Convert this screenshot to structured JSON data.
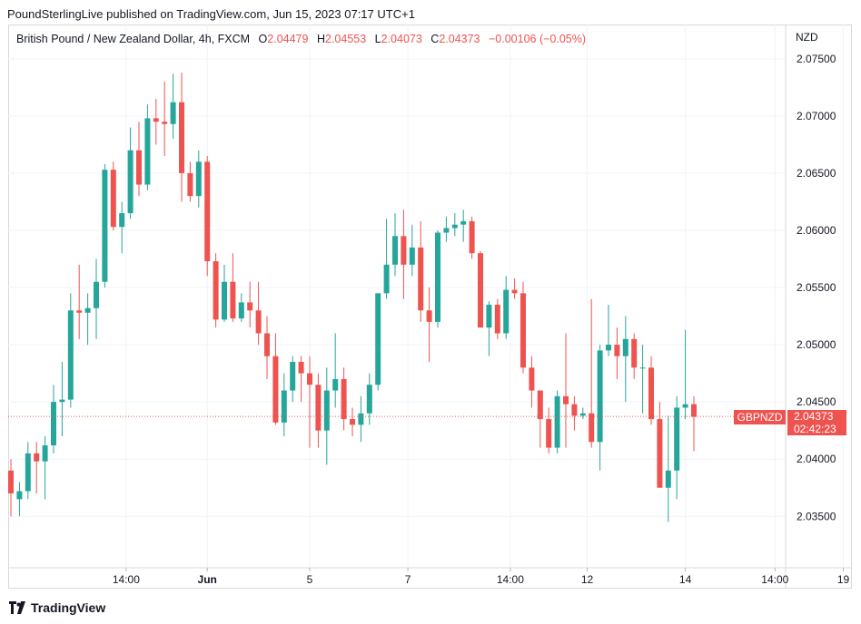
{
  "publisher": "PoundSterlingLive published on TradingView.com, Jun 15, 2023 07:17 UTC+1",
  "legend": {
    "symbol": "British Pound / New Zealand Dollar, 4h, FXCM",
    "o_label": "O",
    "o_value": "2.04479",
    "h_label": "H",
    "h_value": "2.04553",
    "l_label": "L",
    "l_value": "2.04073",
    "c_label": "C",
    "c_value": "2.04373",
    "change": "−0.00106 (−0.05%)"
  },
  "currency": "NZD",
  "price_tag": {
    "symbol": "GBPNZD",
    "price": "2.04373",
    "countdown": "02:42:23"
  },
  "brand": "TradingView",
  "colors": {
    "up": "#26a69a",
    "down": "#ef5350",
    "grid": "#f0f3fa",
    "text": "#131722"
  },
  "chart_data": {
    "type": "candlestick",
    "ylim": [
      2.0305,
      2.078
    ],
    "y_ticks": [
      "2.07500",
      "2.07000",
      "2.06500",
      "2.06000",
      "2.05500",
      "2.05000",
      "2.04500",
      "2.04000",
      "2.03500"
    ],
    "x_ticks": [
      "14:00",
      "Jun",
      "5",
      "7",
      "14:00",
      "12",
      "14",
      "14:00",
      "19"
    ],
    "last_price": 2.04373,
    "candles": [
      [
        2.039,
        2.04,
        2.035,
        2.037
      ],
      [
        2.0365,
        2.038,
        2.035,
        2.0372
      ],
      [
        2.0372,
        2.0415,
        2.0365,
        2.0405
      ],
      [
        2.0405,
        2.0415,
        2.037,
        2.0398
      ],
      [
        2.0398,
        2.042,
        2.0365,
        2.0412
      ],
      [
        2.0412,
        2.0465,
        2.0405,
        2.045
      ],
      [
        2.045,
        2.0485,
        2.042,
        2.0452
      ],
      [
        2.0452,
        2.0545,
        2.0445,
        2.053
      ],
      [
        2.053,
        2.057,
        2.0505,
        2.0528
      ],
      [
        2.0528,
        2.0545,
        2.05,
        2.0532
      ],
      [
        2.0532,
        2.0575,
        2.0505,
        2.0555
      ],
      [
        2.0555,
        2.0658,
        2.055,
        2.0653
      ],
      [
        2.0653,
        2.066,
        2.06,
        2.0603
      ],
      [
        2.0603,
        2.0625,
        2.058,
        2.0615
      ],
      [
        2.0615,
        2.069,
        2.061,
        2.067
      ],
      [
        2.067,
        2.0695,
        2.063,
        2.064
      ],
      [
        2.064,
        2.071,
        2.0635,
        2.0698
      ],
      [
        2.0698,
        2.0715,
        2.0675,
        2.0695
      ],
      [
        2.0695,
        2.073,
        2.0665,
        2.0693
      ],
      [
        2.0693,
        2.0737,
        2.068,
        2.0712
      ],
      [
        2.0712,
        2.0738,
        2.0625,
        2.065
      ],
      [
        2.065,
        2.066,
        2.0625,
        2.063
      ],
      [
        2.063,
        2.067,
        2.062,
        2.066
      ],
      [
        2.066,
        2.0665,
        2.056,
        2.0573
      ],
      [
        2.0573,
        2.058,
        2.0515,
        2.0522
      ],
      [
        2.0522,
        2.057,
        2.052,
        2.0555
      ],
      [
        2.0555,
        2.058,
        2.052,
        2.0523
      ],
      [
        2.0523,
        2.0545,
        2.052,
        2.0537
      ],
      [
        2.0537,
        2.0555,
        2.0515,
        2.053
      ],
      [
        2.053,
        2.0555,
        2.05,
        2.051
      ],
      [
        2.051,
        2.0525,
        2.047,
        2.049
      ],
      [
        2.049,
        2.051,
        2.043,
        2.0432
      ],
      [
        2.0432,
        2.0475,
        2.042,
        2.046
      ],
      [
        2.046,
        2.049,
        2.045,
        2.0485
      ],
      [
        2.0485,
        2.049,
        2.045,
        2.0475
      ],
      [
        2.0475,
        2.049,
        2.041,
        2.0465
      ],
      [
        2.0465,
        2.0475,
        2.041,
        2.0425
      ],
      [
        2.0425,
        2.048,
        2.0395,
        2.046
      ],
      [
        2.046,
        2.051,
        2.0445,
        2.047
      ],
      [
        2.047,
        2.048,
        2.0425,
        2.0435
      ],
      [
        2.0435,
        2.0445,
        2.042,
        2.043
      ],
      [
        2.043,
        2.0455,
        2.0415,
        2.044
      ],
      [
        2.044,
        2.0475,
        2.043,
        2.0465
      ],
      [
        2.0465,
        2.0545,
        2.046,
        2.0545
      ],
      [
        2.0545,
        2.061,
        2.054,
        2.057
      ],
      [
        2.057,
        2.0615,
        2.056,
        2.0595
      ],
      [
        2.0595,
        2.0618,
        2.054,
        2.057
      ],
      [
        2.057,
        2.0605,
        2.056,
        2.0585
      ],
      [
        2.0585,
        2.0608,
        2.052,
        2.053
      ],
      [
        2.053,
        2.055,
        2.0485,
        2.052
      ],
      [
        2.052,
        2.06,
        2.0515,
        2.0598
      ],
      [
        2.0598,
        2.0612,
        2.059,
        2.0602
      ],
      [
        2.0602,
        2.0615,
        2.0595,
        2.0605
      ],
      [
        2.0605,
        2.0618,
        2.059,
        2.0608
      ],
      [
        2.0608,
        2.0612,
        2.0575,
        2.058
      ],
      [
        2.058,
        2.0582,
        2.0515,
        2.0515
      ],
      [
        2.0515,
        2.0538,
        2.049,
        2.0535
      ],
      [
        2.0535,
        2.054,
        2.0505,
        2.051
      ],
      [
        2.051,
        2.056,
        2.0505,
        2.0548
      ],
      [
        2.0548,
        2.0558,
        2.054,
        2.0545
      ],
      [
        2.0545,
        2.0555,
        2.0475,
        2.048
      ],
      [
        2.048,
        2.049,
        2.0445,
        2.046
      ],
      [
        2.046,
        2.0458,
        2.041,
        2.0435
      ],
      [
        2.0435,
        2.0445,
        2.0405,
        2.041
      ],
      [
        2.041,
        2.046,
        2.0405,
        2.0455
      ],
      [
        2.0455,
        2.051,
        2.041,
        2.0448
      ],
      [
        2.0448,
        2.0455,
        2.0425,
        2.0438
      ],
      [
        2.0438,
        2.0445,
        2.0435,
        2.044
      ],
      [
        2.044,
        2.054,
        2.041,
        2.0415
      ],
      [
        2.0415,
        2.05,
        2.039,
        2.0495
      ],
      [
        2.0495,
        2.0535,
        2.049,
        2.05
      ],
      [
        2.05,
        2.0515,
        2.047,
        2.049
      ],
      [
        2.049,
        2.0525,
        2.045,
        2.0505
      ],
      [
        2.0505,
        2.051,
        2.047,
        2.048
      ],
      [
        2.048,
        2.05,
        2.044,
        2.048
      ],
      [
        2.048,
        2.049,
        2.043,
        2.0435
      ],
      [
        2.0435,
        2.045,
        2.0375,
        2.0375
      ],
      [
        2.0375,
        2.0438,
        2.0345,
        2.039
      ],
      [
        2.039,
        2.0455,
        2.0365,
        2.0445
      ],
      [
        2.0445,
        2.0513,
        2.0435,
        2.0448
      ],
      [
        2.0448,
        2.0455,
        2.0407,
        2.0437
      ]
    ]
  }
}
